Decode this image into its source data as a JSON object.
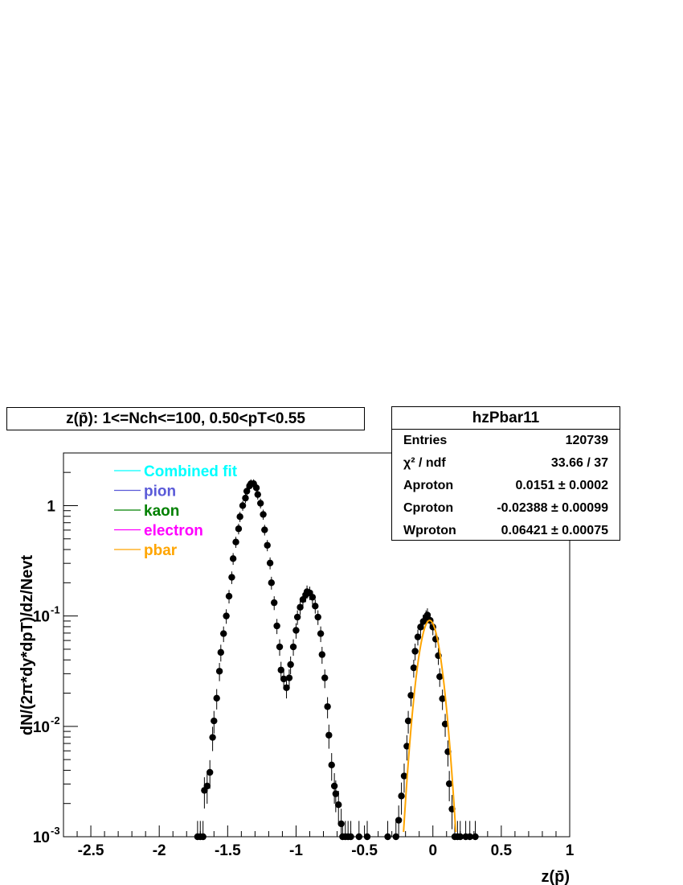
{
  "title": "z(p̄): 1<=Nch<=100, 0.50<pT<0.55",
  "stats": {
    "name": "hzPbar11",
    "rows": [
      {
        "key": "Entries",
        "value": "120739"
      },
      {
        "key": "χ² / ndf",
        "value": "33.66 / 37"
      },
      {
        "key": "Aproton",
        "value": "0.0151 ± 0.0002"
      },
      {
        "key": "Cproton",
        "value": "-0.02388 ± 0.00099"
      },
      {
        "key": "Wproton",
        "value": "0.06421 ± 0.00075"
      }
    ]
  },
  "chart_data": {
    "type": "scatter",
    "title": "z(p̄): 1<=Nch<=100, 0.50<pT<0.55",
    "xlabel": "z(p̄)",
    "ylabel": "dN/(2π*dy*dpT)/dz/Nevt",
    "xlim": [
      -2.7,
      1.0
    ],
    "ylim": [
      0.001,
      3.0
    ],
    "yscale": "log",
    "grid": false,
    "legend_position": "top-left",
    "x_ticks": [
      "-2.5",
      "-2",
      "-1.5",
      "-1",
      "-0.5",
      "0",
      "0.5",
      "1"
    ],
    "y_ticks": [
      "10^-3",
      "10^-2",
      "10^-1",
      "1"
    ],
    "legend": [
      {
        "label": "Combined fit",
        "color": "#00ffff"
      },
      {
        "label": "pion",
        "color": "#5a5ad8"
      },
      {
        "label": "kaon",
        "color": "#008000"
      },
      {
        "label": "electron",
        "color": "#ff00ff"
      },
      {
        "label": "pbar",
        "color": "#ffa500"
      }
    ],
    "series": [
      {
        "marker": "circle",
        "color": "#000000",
        "points": [
          [
            -1.72,
            0.001
          ],
          [
            -1.7,
            0.001
          ],
          [
            -1.68,
            0.001
          ],
          [
            -1.67,
            0.00263
          ],
          [
            -1.65,
            0.00288
          ],
          [
            -1.63,
            0.00383
          ],
          [
            -1.61,
            0.00794
          ],
          [
            -1.6,
            0.0112
          ],
          [
            -1.58,
            0.018
          ],
          [
            -1.56,
            0.0316
          ],
          [
            -1.55,
            0.0468
          ],
          [
            -1.53,
            0.0692
          ],
          [
            -1.51,
            0.1
          ],
          [
            -1.49,
            0.151
          ],
          [
            -1.47,
            0.224
          ],
          [
            -1.46,
            0.331
          ],
          [
            -1.44,
            0.468
          ],
          [
            -1.42,
            0.617
          ],
          [
            -1.41,
            0.794
          ],
          [
            -1.39,
            1.0
          ],
          [
            -1.37,
            1.17
          ],
          [
            -1.36,
            1.35
          ],
          [
            -1.34,
            1.51
          ],
          [
            -1.33,
            1.58
          ],
          [
            -1.31,
            1.58
          ],
          [
            -1.29,
            1.45
          ],
          [
            -1.28,
            1.26
          ],
          [
            -1.26,
            1.05
          ],
          [
            -1.24,
            0.832
          ],
          [
            -1.23,
            0.603
          ],
          [
            -1.21,
            0.437
          ],
          [
            -1.19,
            0.302
          ],
          [
            -1.18,
            0.2
          ],
          [
            -1.16,
            0.132
          ],
          [
            -1.14,
            0.0813
          ],
          [
            -1.12,
            0.0525
          ],
          [
            -1.11,
            0.0324
          ],
          [
            -1.09,
            0.0269
          ],
          [
            -1.07,
            0.0224
          ],
          [
            -1.05,
            0.0275
          ],
          [
            -1.04,
            0.0363
          ],
          [
            -1.02,
            0.0525
          ],
          [
            -1.0,
            0.0741
          ],
          [
            -0.99,
            0.0977
          ],
          [
            -0.97,
            0.12
          ],
          [
            -0.95,
            0.141
          ],
          [
            -0.93,
            0.155
          ],
          [
            -0.92,
            0.166
          ],
          [
            -0.9,
            0.162
          ],
          [
            -0.88,
            0.148
          ],
          [
            -0.86,
            0.123
          ],
          [
            -0.84,
            0.0977
          ],
          [
            -0.82,
            0.0692
          ],
          [
            -0.81,
            0.0447
          ],
          [
            -0.79,
            0.0275
          ],
          [
            -0.77,
            0.0151
          ],
          [
            -0.76,
            0.00832
          ],
          [
            -0.74,
            0.00447
          ],
          [
            -0.72,
            0.00288
          ],
          [
            -0.71,
            0.00245
          ],
          [
            -0.69,
            0.00195
          ],
          [
            -0.67,
            0.00131
          ],
          [
            -0.66,
            0.001
          ],
          [
            -0.64,
            0.001
          ],
          [
            -0.62,
            0.001
          ],
          [
            -0.6,
            0.001
          ],
          [
            -0.54,
            0.001
          ],
          [
            -0.48,
            0.001
          ],
          [
            -0.33,
            0.001
          ],
          [
            -0.27,
            0.001
          ],
          [
            -0.25,
            0.00141
          ],
          [
            -0.23,
            0.00234
          ],
          [
            -0.21,
            0.00355
          ],
          [
            -0.19,
            0.00661
          ],
          [
            -0.18,
            0.0112
          ],
          [
            -0.16,
            0.0191
          ],
          [
            -0.14,
            0.0339
          ],
          [
            -0.13,
            0.0479
          ],
          [
            -0.11,
            0.0646
          ],
          [
            -0.09,
            0.0794
          ],
          [
            -0.07,
            0.0891
          ],
          [
            -0.05,
            0.0977
          ],
          [
            -0.04,
            0.102
          ],
          [
            -0.02,
            0.0912
          ],
          [
            0.0,
            0.0794
          ],
          [
            0.02,
            0.0617
          ],
          [
            0.04,
            0.0437
          ],
          [
            0.05,
            0.0282
          ],
          [
            0.07,
            0.0178
          ],
          [
            0.09,
            0.0105
          ],
          [
            0.11,
            0.00589
          ],
          [
            0.12,
            0.00302
          ],
          [
            0.14,
            0.00178
          ],
          [
            0.16,
            0.001
          ],
          [
            0.18,
            0.001
          ],
          [
            0.2,
            0.001
          ],
          [
            0.24,
            0.001
          ],
          [
            0.27,
            0.001
          ],
          [
            0.31,
            0.001
          ]
        ]
      }
    ],
    "fit": {
      "name": "pbar",
      "color": "#ffa500",
      "function": "gaussian",
      "amplitude": 0.0912,
      "mean": -0.02388,
      "sigma": 0.06421
    }
  }
}
